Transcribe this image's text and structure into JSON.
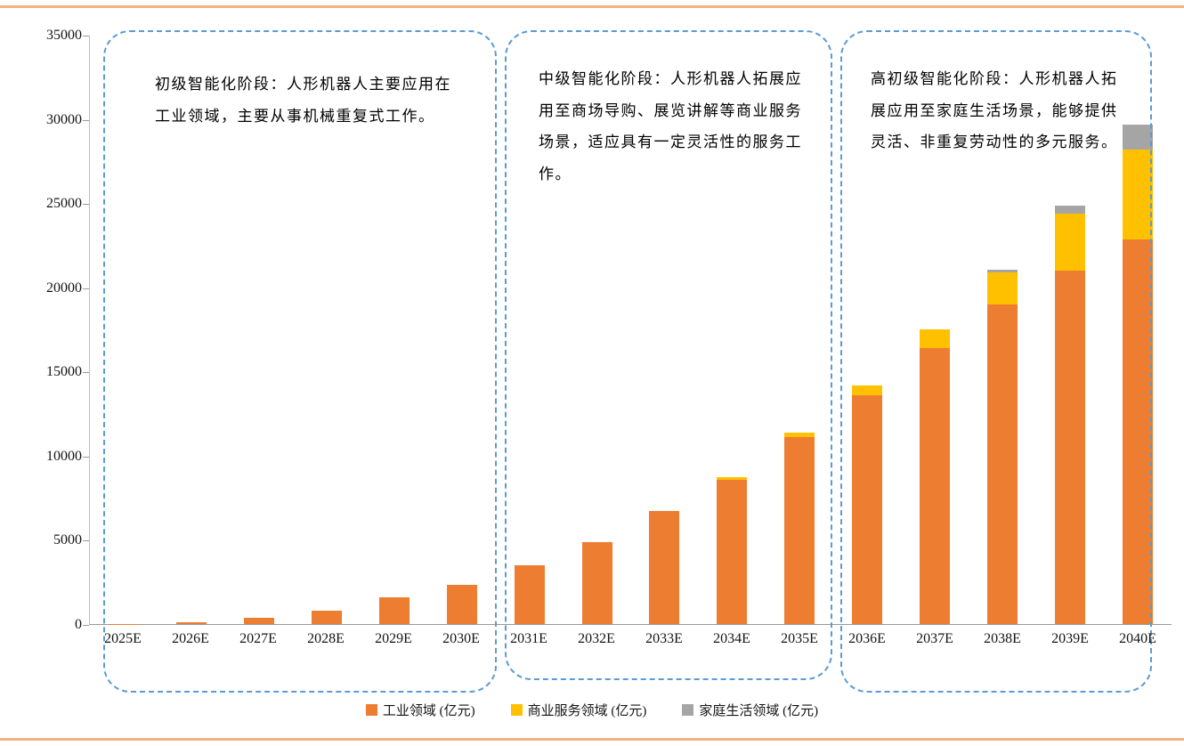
{
  "page": {
    "border_color": "#f4b183"
  },
  "annotations": [
    {
      "text": "初级智能化阶段：人形机器人主要应用在工业领域，主要从事机械重复式工作。"
    },
    {
      "text": "中级智能化阶段：人形机器人拓展应用至商场导购、展览讲解等商业服务场景，适应具有一定灵活性的服务工作。"
    },
    {
      "text": "高初级智能化阶段：人形机器人拓展应用至家庭生活场景，能够提供灵活、非重复劳动性的多元服务。"
    }
  ],
  "chart_data": {
    "type": "bar",
    "stacked": true,
    "title": "",
    "xlabel": "",
    "ylabel": "",
    "ylim": [
      0,
      35000
    ],
    "yticks": [
      0,
      5000,
      10000,
      15000,
      20000,
      25000,
      30000,
      35000
    ],
    "grid": false,
    "legend_position": "bottom",
    "categories": [
      "2025E",
      "2026E",
      "2027E",
      "2028E",
      "2029E",
      "2030E",
      "2031E",
      "2032E",
      "2033E",
      "2034E",
      "2035E",
      "2036E",
      "2037E",
      "2038E",
      "2039E",
      "2040E"
    ],
    "series": [
      {
        "name": "工业领域 (亿元)",
        "color": "#ed7d31",
        "values": [
          15,
          120,
          350,
          800,
          1600,
          2350,
          3500,
          4850,
          6700,
          8600,
          11100,
          13600,
          16400,
          19000,
          21000,
          22900
        ]
      },
      {
        "name": "商业服务领域 (亿元)",
        "color": "#ffc000",
        "values": [
          0,
          0,
          0,
          0,
          0,
          0,
          0,
          0,
          0,
          150,
          300,
          600,
          1150,
          1900,
          3400,
          5300
        ]
      },
      {
        "name": "家庭生活领域 (亿元)",
        "color": "#a5a5a5",
        "values": [
          0,
          0,
          0,
          0,
          0,
          0,
          0,
          0,
          0,
          0,
          0,
          0,
          0,
          200,
          500,
          1500
        ]
      }
    ]
  }
}
